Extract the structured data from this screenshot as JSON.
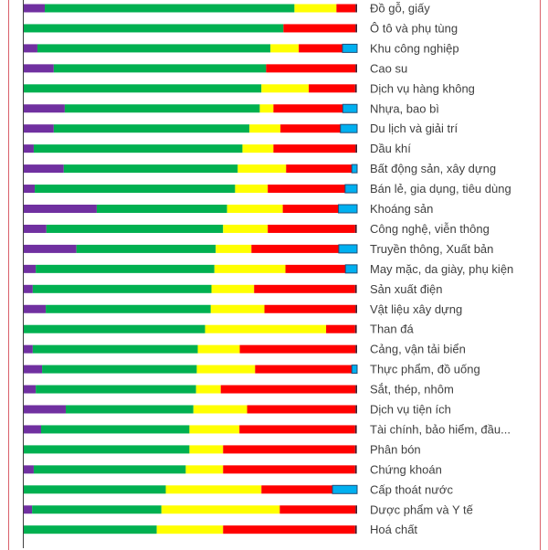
{
  "chart_data": {
    "type": "bar",
    "orientation": "horizontal",
    "stacked": true,
    "title": "",
    "xlabel": "",
    "ylabel": "",
    "xlim": [
      0,
      100
    ],
    "unit": "percent of total",
    "grid": false,
    "legend": "none",
    "categories": [
      "Đồ gỗ, giấy",
      "Ô tô và phụ tùng",
      "Khu công nghiệp",
      "Cao su",
      "Dịch vụ hàng không",
      "Nhựa, bao bì",
      "Du lịch và giải trí",
      "Dầu khí",
      "Bất động sản, xây dựng",
      "Bán lẻ, gia dụng, tiêu dùng",
      "Khoáng sản",
      "Công nghệ, viễn thông",
      "Truyền thông, Xuất bản",
      "May mặc, da giày, phụ kiện",
      "Sản xuất điện",
      "Vật liệu xây dựng",
      "Than đá",
      "Cảng, vận tải biển",
      "Thực phẩm, đồ uống",
      "Sắt, thép, nhôm",
      "Dịch vụ tiện ích",
      "Tài chính, bảo hiểm, đầu...",
      "Phân bón",
      "Chứng khoán",
      "Cấp thoát nước",
      "Dược phẩm và Y tế",
      "Hoá chất"
    ],
    "series": [
      {
        "name": "Purple",
        "color": "#7030a0",
        "values": [
          6.3,
          0,
          4.1,
          9.0,
          0,
          12.3,
          9.0,
          3.0,
          12.0,
          3.3,
          21.9,
          6.8,
          15.8,
          3.6,
          2.7,
          6.6,
          0,
          2.7,
          5.5,
          3.6,
          12.6,
          5.2,
          0,
          3.0,
          0,
          2.5,
          0
        ]
      },
      {
        "name": "Green",
        "color": "#00b050",
        "values": [
          74.9,
          77.9,
          69.9,
          63.7,
          71.3,
          58.5,
          58.7,
          62.6,
          52.2,
          60.1,
          39.1,
          53.0,
          41.8,
          53.6,
          53.6,
          49.5,
          54.4,
          49.5,
          46.4,
          48.1,
          38.3,
          44.5,
          49.7,
          45.6,
          42.6,
          38.8,
          39.9
        ]
      },
      {
        "name": "Yellow",
        "color": "#ffff00",
        "values": [
          12.6,
          0,
          8.5,
          0,
          14.2,
          4.1,
          9.3,
          9.3,
          14.5,
          9.8,
          16.7,
          13.4,
          10.7,
          21.3,
          12.8,
          16.1,
          36.3,
          12.6,
          17.5,
          7.4,
          16.1,
          15.0,
          10.1,
          11.2,
          28.7,
          35.5,
          19.9
        ]
      },
      {
        "name": "Red",
        "color": "#ff0000",
        "values": [
          5.7,
          21.6,
          13.1,
          26.8,
          13.9,
          20.8,
          18.0,
          24.6,
          19.7,
          23.2,
          16.7,
          26.2,
          26.2,
          18.0,
          30.3,
          27.3,
          8.7,
          34.7,
          29.0,
          40.4,
          32.5,
          34.7,
          39.6,
          39.6,
          21.3,
          22.7,
          39.6
        ]
      },
      {
        "name": "Blue",
        "color": "#00b0f0",
        "values": [
          0,
          0,
          4.4,
          0,
          0,
          4.3,
          5.0,
          0,
          1.6,
          3.6,
          5.6,
          0,
          5.5,
          3.5,
          0,
          0,
          0,
          0,
          1.6,
          0,
          0,
          0,
          0,
          0,
          7.4,
          0,
          0
        ]
      },
      {
        "name": "Dark",
        "color": "#4a1c2c",
        "values": [
          0.5,
          0.5,
          0,
          0.5,
          0.5,
          0,
          0,
          0.5,
          0,
          0,
          0,
          0.5,
          0,
          0,
          0.5,
          0.5,
          0.5,
          0.5,
          0,
          0.5,
          0.5,
          0.5,
          0.5,
          0.5,
          0,
          0.5,
          0.5
        ]
      }
    ]
  }
}
